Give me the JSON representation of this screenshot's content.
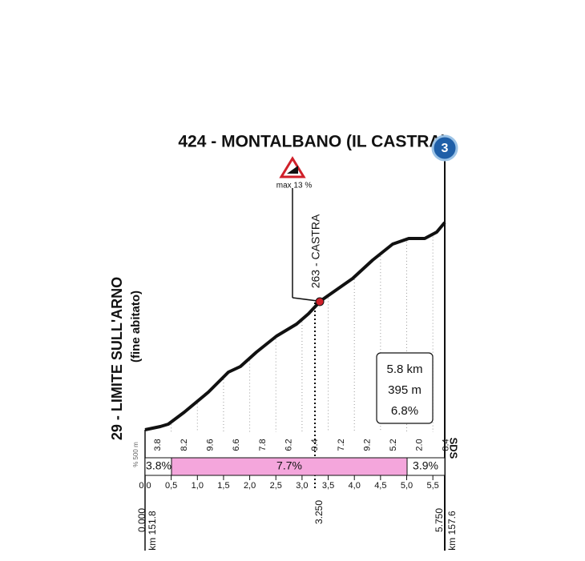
{
  "header": {
    "title": "424 - MONTALBANO (IL CASTRA)",
    "badge": "3"
  },
  "max_gradient": "max 13 %",
  "waypoint": "263 - CASTRA",
  "start": {
    "name": "29 - LIMITE SULL'ARNO",
    "note": "(fine abitato)"
  },
  "summary": {
    "distance": "5.8 km",
    "climb": "395 m",
    "gradient": "6.8%"
  },
  "segment_gradients": [
    "3.8",
    "8.2",
    "9.6",
    "6.6",
    "7.8",
    "6.2",
    "9.4",
    "7.2",
    "9.2",
    "5.2",
    "2.0",
    "8.4"
  ],
  "legend_note": "% 500 m",
  "side_label": "SDS",
  "sections": [
    "3.8%",
    "7.7%",
    "3.9%"
  ],
  "km_ticks": [
    "0,0",
    "0,5",
    "1,0",
    "1,5",
    "2,0",
    "2,5",
    "3,0",
    "3,5",
    "4,0",
    "4,5",
    "5,0",
    "5,5"
  ],
  "bottom": {
    "start_dist": "0.000",
    "start_km": "km 151.8",
    "mid_dist": "3.250",
    "end_dist": "5.750",
    "end_km": "km 157.6"
  }
}
